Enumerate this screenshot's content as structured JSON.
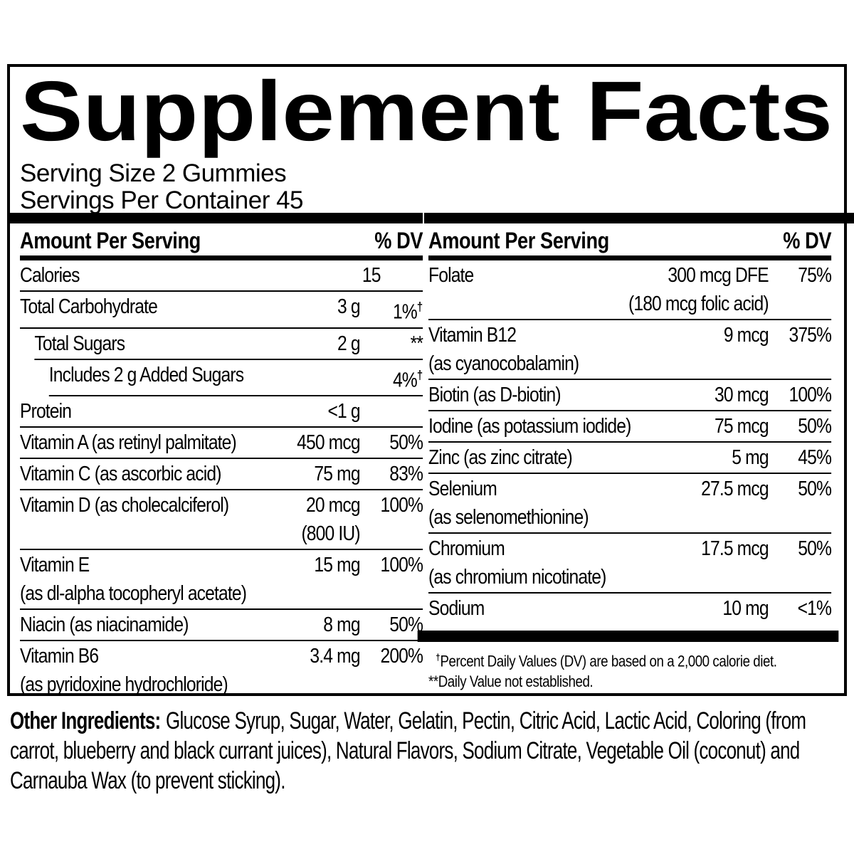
{
  "title": "Supplement Facts",
  "serving": {
    "size": "Serving Size 2 Gummies",
    "per_container": "Servings Per Container 45"
  },
  "columns": {
    "left": {
      "header": {
        "label": "Amount Per Serving",
        "dv": "% DV"
      },
      "rows": [
        {
          "label": "Calories",
          "amount": "15",
          "dv": ""
        },
        {
          "label": "Total Carbohydrate",
          "amount": "3 g",
          "dv": "1%",
          "dv_mark": "†"
        },
        {
          "label": "Total Sugars",
          "amount": "2 g",
          "dv": "**",
          "indent": 1
        },
        {
          "label": "Includes 2 g Added Sugars",
          "amount": "",
          "dv": "4%",
          "dv_mark": "†",
          "indent": 2
        },
        {
          "label": "Protein",
          "amount": "<1 g",
          "dv": ""
        },
        {
          "label": "Vitamin A (as retinyl palmitate)",
          "amount": "450 mcg",
          "dv": "50%"
        },
        {
          "label": "Vitamin C (as ascorbic acid)",
          "amount": "75 mg",
          "dv": "83%"
        },
        {
          "label": "Vitamin D (as cholecalciferol)",
          "amount": "20 mcg",
          "subamount": "(800 IU)",
          "dv": "100%"
        },
        {
          "label": "Vitamin E",
          "sublabel": "(as dl-alpha tocopheryl acetate)",
          "amount": "15 mg",
          "dv": "100%"
        },
        {
          "label": "Niacin (as niacinamide)",
          "amount": "8 mg",
          "dv": "50%"
        },
        {
          "label": "Vitamin B6",
          "sublabel": "(as pyridoxine hydrochloride)",
          "amount": "3.4 mg",
          "dv": "200%"
        }
      ]
    },
    "right": {
      "header": {
        "label": "Amount Per Serving",
        "dv": "% DV"
      },
      "rows": [
        {
          "label": "Folate",
          "amount": "300 mcg DFE",
          "subamount": "(180 mcg folic acid)",
          "dv": "75%"
        },
        {
          "label": "Vitamin B12",
          "sublabel": "(as cyanocobalamin)",
          "amount": "9 mcg",
          "dv": "375%"
        },
        {
          "label": "Biotin (as D-biotin)",
          "amount": "30 mcg",
          "dv": "100%"
        },
        {
          "label": "Iodine (as potassium iodide)",
          "amount": "75 mcg",
          "dv": "50%"
        },
        {
          "label": "Zinc (as zinc citrate)",
          "amount": "5 mg",
          "dv": "45%"
        },
        {
          "label": "Selenium",
          "sublabel": "(as selenomethionine)",
          "amount": "27.5 mcg",
          "dv": "50%"
        },
        {
          "label": "Chromium",
          "sublabel": "(as chromium nicotinate)",
          "amount": "17.5 mcg",
          "dv": "50%"
        },
        {
          "label": "Sodium",
          "amount": "10 mg",
          "dv": "<1%"
        }
      ],
      "footnotes": [
        {
          "mark": "†",
          "text": "Percent Daily Values (DV) are based on a 2,000 calorie diet."
        },
        {
          "mark": "**",
          "text": "Daily Value not established."
        }
      ]
    }
  },
  "other_ingredients": {
    "label": "Other Ingredients:",
    "text": "Glucose Syrup, Sugar, Water, Gelatin, Pectin, Citric Acid, Lactic Acid, Coloring (from carrot, blueberry and black currant juices), Natural Flavors, Sodium Citrate, Vegetable Oil (coconut) and Carnauba Wax (to prevent sticking)."
  },
  "colors": {
    "text": "#000000",
    "background": "#ffffff",
    "border": "#000000"
  }
}
